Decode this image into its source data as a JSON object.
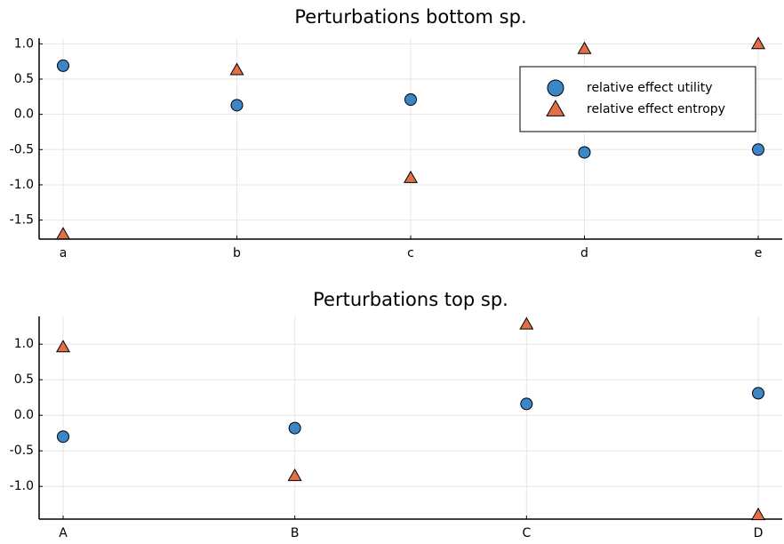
{
  "chart_data": [
    {
      "type": "scatter",
      "title": "Perturbations bottom sp.",
      "categories": [
        "a",
        "b",
        "c",
        "d",
        "e"
      ],
      "series": [
        {
          "name": "relative effect utility",
          "color": "#3b86c6",
          "marker": "circle",
          "values": [
            0.69,
            0.13,
            0.21,
            -0.54,
            -0.5
          ]
        },
        {
          "name": "relative effect entropy",
          "color": "#e26f46",
          "marker": "triangle",
          "values": [
            -1.7,
            0.63,
            -0.9,
            0.93,
            1.0
          ]
        }
      ],
      "ylim": [
        -1.77,
        1.08
      ],
      "yticks": [
        {
          "value": 1,
          "label": "1.0"
        },
        0.5,
        {
          "value": 0,
          "label": "0.0"
        },
        -0.5,
        {
          "value": -1,
          "label": "-1.0"
        },
        -1.5
      ],
      "grid": true,
      "legend": "top-right"
    },
    {
      "type": "scatter",
      "title": "Perturbations top sp.",
      "categories": [
        "A",
        "B",
        "C",
        "D"
      ],
      "series": [
        {
          "color": "#3b86c6",
          "marker": "circle",
          "values": [
            -0.3,
            -0.18,
            0.16,
            0.31
          ]
        },
        {
          "color": "#e26f46",
          "marker": "triangle",
          "values": [
            0.96,
            -0.85,
            1.28,
            -1.4
          ]
        }
      ],
      "ylim": [
        -1.46,
        1.39
      ],
      "yticks": [
        {
          "value": 1,
          "label": "1.0"
        },
        0.5,
        {
          "value": 0,
          "label": "0.0"
        },
        -0.5,
        {
          "value": -1,
          "label": "-1.0"
        }
      ],
      "grid": true
    }
  ]
}
